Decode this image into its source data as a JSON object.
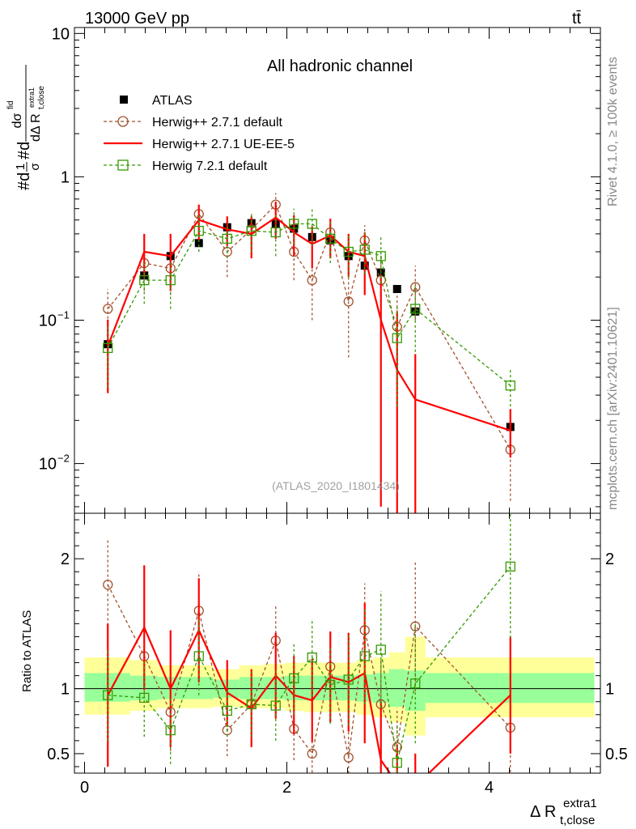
{
  "header": {
    "energy_label": "13000 GeV pp",
    "process_label": "tt̄"
  },
  "side_text": {
    "rivet": "Rivet 4.1.0, ≥ 100k events",
    "mcplots": "mcplots.cern.ch [arXiv:2401.10621]"
  },
  "chart_data": {
    "type": "scatter",
    "title": "All hadronic channel",
    "watermark": "(ATLAS_2020_I1801434)",
    "ylabel": "#d1/σ#dd/dΔ R_t,close^extra1 dσ^fid",
    "ylabel_parts": {
      "frac_top": "dσ",
      "frac_top_sup": "fid",
      "frac_bottom": "dΔ R",
      "frac_bottom_sub": "t,close",
      "frac_bottom_sup": "extra1",
      "prefix_a": "#d",
      "prefix_frac_top": "1",
      "prefix_frac_bottom": "σ",
      "prefix_b": "#d"
    },
    "xlabel": {
      "main": "Δ R",
      "sup": "extra1",
      "sub": "t,close"
    },
    "ratio_ylabel": "Ratio to ATLAS",
    "xlim": [
      -0.1,
      5.1
    ],
    "ylim_main": [
      0.0045,
      11
    ],
    "ylim_ratio": [
      0.35,
      2.35
    ],
    "main_ticks": [
      {
        "value": 10,
        "label": "10"
      },
      {
        "value": 1,
        "label": "1"
      },
      {
        "value": 0.1,
        "label": "10",
        "sup": "−1"
      },
      {
        "value": 0.01,
        "label": "10",
        "sup": "−2"
      }
    ],
    "ratio_ticks": [
      {
        "value": 2,
        "label": "2"
      },
      {
        "value": 1,
        "label": "1"
      },
      {
        "value": 0.5,
        "label": "0.5"
      }
    ],
    "x_ticks": [
      {
        "value": 0,
        "label": "0"
      },
      {
        "value": 2,
        "label": "2"
      },
      {
        "value": 4,
        "label": "4"
      }
    ],
    "x": [
      0.23,
      0.59,
      0.85,
      1.13,
      1.41,
      1.65,
      1.89,
      2.07,
      2.25,
      2.43,
      2.61,
      2.77,
      2.93,
      3.09,
      3.27,
      4.21
    ],
    "data_points": {
      "name": "ATLAS",
      "values": [
        0.068,
        0.205,
        0.28,
        0.345,
        0.445,
        0.475,
        0.47,
        0.435,
        0.38,
        0.36,
        0.28,
        0.24,
        0.215,
        0.165,
        0.115,
        0.018
      ]
    },
    "series": [
      {
        "name": "Herwig++ 2.7.1 default",
        "color": "#a0522d",
        "style": "dashed",
        "marker": "circle",
        "values": [
          0.12,
          0.25,
          0.23,
          0.55,
          0.3,
          0.43,
          0.64,
          0.3,
          0.19,
          0.41,
          0.135,
          0.36,
          0.19,
          0.09,
          0.17,
          0.0125
        ],
        "err_lo": [
          0.045,
          0.09,
          0.08,
          0.1,
          0.1,
          0.12,
          0.13,
          0.11,
          0.09,
          0.1,
          0.08,
          0.1,
          0.09,
          0.06,
          0.07,
          0.007
        ],
        "err_hi": [
          0.045,
          0.09,
          0.08,
          0.1,
          0.1,
          0.12,
          0.13,
          0.11,
          0.09,
          0.1,
          0.08,
          0.1,
          0.09,
          0.06,
          0.07,
          0.007
        ]
      },
      {
        "name": "Herwig++ 2.7.1 UE-EE-5",
        "color": "#ff0000",
        "style": "solid",
        "marker": "none",
        "values": [
          0.066,
          0.3,
          0.28,
          0.5,
          0.43,
          0.4,
          0.52,
          0.41,
          0.34,
          0.39,
          0.3,
          0.28,
          0.1,
          0.045,
          0.028,
          0.017
        ],
        "err_lo": [
          0.035,
          0.1,
          0.12,
          0.14,
          0.1,
          0.13,
          0.15,
          0.13,
          0.11,
          0.12,
          0.1,
          0.13,
          0.095,
          0.044,
          0.027,
          0.006
        ],
        "err_hi": [
          0.035,
          0.1,
          0.12,
          0.14,
          0.1,
          0.13,
          0.15,
          0.13,
          0.11,
          0.12,
          0.1,
          0.13,
          0.1,
          0.07,
          0.03,
          0.007
        ]
      },
      {
        "name": "Herwig 7.2.1 default",
        "color": "#339900",
        "style": "dashed",
        "marker": "square",
        "values": [
          0.064,
          0.19,
          0.19,
          0.42,
          0.37,
          0.42,
          0.41,
          0.47,
          0.47,
          0.37,
          0.3,
          0.31,
          0.28,
          0.075,
          0.12,
          0.035
        ],
        "err_lo": [
          0.03,
          0.06,
          0.07,
          0.12,
          0.1,
          0.12,
          0.13,
          0.13,
          0.14,
          0.12,
          0.1,
          0.1,
          0.1,
          0.05,
          0.06,
          0.01
        ],
        "err_hi": [
          0.03,
          0.06,
          0.07,
          0.12,
          0.1,
          0.12,
          0.13,
          0.13,
          0.14,
          0.12,
          0.1,
          0.1,
          0.1,
          0.05,
          0.06,
          0.01
        ]
      }
    ],
    "ratio_bands": {
      "edges": [
        0,
        0.45,
        0.72,
        0.98,
        1.27,
        1.53,
        1.77,
        1.98,
        2.16,
        2.34,
        2.52,
        2.69,
        2.85,
        3.01,
        3.17,
        3.37,
        5.04
      ],
      "yellow_lo": [
        0.8,
        0.83,
        0.85,
        0.85,
        0.86,
        0.85,
        0.85,
        0.83,
        0.82,
        0.82,
        0.82,
        0.8,
        0.78,
        0.74,
        0.64,
        0.78
      ],
      "yellow_hi": [
        1.24,
        1.22,
        1.18,
        1.18,
        1.15,
        1.18,
        1.19,
        1.2,
        1.2,
        1.2,
        1.2,
        1.22,
        1.24,
        1.28,
        1.4,
        1.24
      ],
      "green_lo": [
        0.9,
        0.91,
        0.92,
        0.92,
        0.93,
        0.92,
        0.92,
        0.91,
        0.91,
        0.91,
        0.91,
        0.9,
        0.89,
        0.86,
        0.83,
        0.89
      ],
      "green_hi": [
        1.12,
        1.1,
        1.09,
        1.09,
        1.07,
        1.09,
        1.09,
        1.1,
        1.1,
        1.1,
        1.1,
        1.11,
        1.12,
        1.15,
        1.14,
        1.12
      ]
    },
    "ratio_series": [
      {
        "name": "Herwig++ 2.7.1 default",
        "values": [
          1.8,
          1.25,
          0.82,
          1.6,
          0.68,
          0.88,
          1.37,
          0.69,
          0.5,
          1.17,
          0.47,
          1.45,
          0.88,
          0.55,
          1.48,
          0.7
        ],
        "err_lo": [
          0.35,
          0.3,
          0.3,
          0.3,
          0.2,
          0.25,
          0.28,
          0.24,
          0.22,
          0.26,
          0.27,
          0.36,
          0.35,
          0.3,
          0.5,
          0.38
        ],
        "err_hi": [
          0.35,
          0.3,
          0.3,
          0.3,
          0.2,
          0.25,
          0.28,
          0.24,
          0.22,
          0.26,
          0.27,
          0.36,
          0.35,
          0.3,
          0.5,
          0.38
        ]
      },
      {
        "name": "Herwig++ 2.7.1 UE-EE-5",
        "values": [
          0.95,
          1.47,
          1.0,
          1.45,
          0.97,
          0.85,
          1.1,
          0.95,
          0.91,
          1.09,
          1.05,
          1.12,
          0.45,
          0.27,
          0.25,
          0.95
        ],
        "err_lo": [
          0.55,
          0.48,
          0.45,
          0.4,
          0.25,
          0.3,
          0.33,
          0.3,
          0.32,
          0.35,
          0.38,
          0.54,
          0.45,
          0.27,
          0.25,
          0.45
        ],
        "err_hi": [
          0.55,
          0.48,
          0.45,
          0.4,
          0.25,
          0.3,
          0.33,
          0.3,
          0.32,
          0.35,
          0.38,
          0.54,
          0.45,
          0.3,
          0.25,
          0.45
        ]
      },
      {
        "name": "Herwig 7.2.1 default",
        "values": [
          0.95,
          0.93,
          0.68,
          1.25,
          0.83,
          0.88,
          0.87,
          1.08,
          1.24,
          1.03,
          1.07,
          1.25,
          1.3,
          0.43,
          1.04,
          1.94
        ],
        "err_lo": [
          0.35,
          0.3,
          0.26,
          0.3,
          0.2,
          0.25,
          0.27,
          0.28,
          0.3,
          0.3,
          0.35,
          0.37,
          0.45,
          0.3,
          0.46,
          0.55
        ],
        "err_hi": [
          0.35,
          0.3,
          0.26,
          0.3,
          0.2,
          0.25,
          0.27,
          0.28,
          0.3,
          0.3,
          0.35,
          0.37,
          0.45,
          0.3,
          0.46,
          0.55
        ]
      }
    ]
  }
}
